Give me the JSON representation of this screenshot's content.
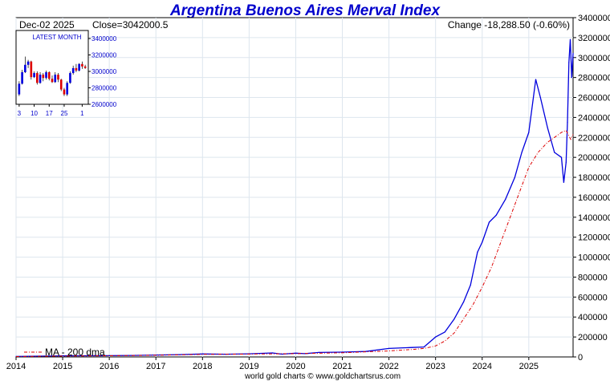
{
  "chart_data": {
    "type": "line",
    "title": "Argentina Buenos Aires Merval Index",
    "header": {
      "date_label": "Dec-02  2025",
      "close_label": "Close=3042000.5",
      "change_label": "Change -18,288.50 (-0.60%)"
    },
    "footer": "world gold charts © www.goldchartsrus.com",
    "x_ticks": [
      "2014",
      "2015",
      "2016",
      "2017",
      "2018",
      "2019",
      "2020",
      "2021",
      "2022",
      "2023",
      "2024",
      "2025"
    ],
    "xlim": [
      2014.0,
      2025.95
    ],
    "y_ticks": [
      0,
      200000,
      400000,
      600000,
      800000,
      1000000,
      1200000,
      1400000,
      1600000,
      1800000,
      2000000,
      2200000,
      2400000,
      2600000,
      2800000,
      3000000,
      3200000,
      3400000
    ],
    "ylim": [
      0,
      3400000
    ],
    "grid": true,
    "colors": {
      "index": "#0000dd",
      "ma": "#dd0000",
      "title": "#0000cc",
      "grid": "#dde6ee"
    },
    "series": [
      {
        "name": "Merval",
        "x": [
          2014.0,
          2014.5,
          2015.0,
          2015.5,
          2016.0,
          2016.5,
          2017.0,
          2017.5,
          2018.0,
          2018.5,
          2019.0,
          2019.5,
          2019.7,
          2020.0,
          2020.2,
          2020.5,
          2021.0,
          2021.5,
          2022.0,
          2022.5,
          2022.75,
          2023.0,
          2023.2,
          2023.4,
          2023.6,
          2023.75,
          2023.9,
          2024.0,
          2024.15,
          2024.3,
          2024.5,
          2024.7,
          2024.85,
          2025.0,
          2025.15,
          2025.25,
          2025.4,
          2025.55,
          2025.7,
          2025.75,
          2025.8,
          2025.83,
          2025.86,
          2025.89,
          2025.92,
          2025.95
        ],
        "values": [
          5000,
          8000,
          11000,
          12000,
          13000,
          15000,
          19000,
          23000,
          30000,
          27000,
          31000,
          40000,
          28000,
          38000,
          33000,
          45000,
          48000,
          55000,
          85000,
          95000,
          100000,
          200000,
          250000,
          380000,
          550000,
          720000,
          1050000,
          1150000,
          1350000,
          1420000,
          1580000,
          1800000,
          2050000,
          2250000,
          2780000,
          2600000,
          2300000,
          2050000,
          2000000,
          1750000,
          1950000,
          2350000,
          2950000,
          3180000,
          2800000,
          3042000
        ]
      },
      {
        "name": "MA - 200 dma",
        "x": [
          2014.0,
          2015.0,
          2016.0,
          2017.0,
          2018.0,
          2019.0,
          2020.0,
          2021.0,
          2022.0,
          2022.5,
          2022.75,
          2023.0,
          2023.2,
          2023.4,
          2023.6,
          2023.8,
          2024.0,
          2024.2,
          2024.4,
          2024.6,
          2024.8,
          2025.0,
          2025.2,
          2025.4,
          2025.55,
          2025.7,
          2025.8,
          2025.9,
          2025.95
        ],
        "values": [
          4000,
          9000,
          12000,
          17000,
          26000,
          29000,
          33000,
          42000,
          60000,
          75000,
          85000,
          110000,
          160000,
          240000,
          380000,
          520000,
          700000,
          900000,
          1150000,
          1400000,
          1650000,
          1900000,
          2050000,
          2150000,
          2200000,
          2250000,
          2270000,
          2180000,
          2230000
        ]
      }
    ],
    "legend": {
      "label": "MA - 200 dma",
      "position": "bottom-left"
    },
    "inset": {
      "title": "LATEST MONTH",
      "y_ticks": [
        "3400000",
        "3200000",
        "3000000",
        "2800000",
        "2600000"
      ],
      "y_values": [
        3400000,
        3200000,
        3000000,
        2800000,
        2600000
      ],
      "x_ticks": [
        "3",
        "10",
        "17",
        "25",
        "1"
      ],
      "candles": [
        {
          "o": 2720000,
          "c": 2850000,
          "h": 2880000,
          "l": 2700000
        },
        {
          "o": 2850000,
          "c": 2990000,
          "h": 3020000,
          "l": 2840000
        },
        {
          "o": 2990000,
          "c": 3080000,
          "h": 3180000,
          "l": 2980000
        },
        {
          "o": 3080000,
          "c": 3120000,
          "h": 3140000,
          "l": 3040000
        },
        {
          "o": 3120000,
          "c": 2930000,
          "h": 3130000,
          "l": 2900000
        },
        {
          "o": 2930000,
          "c": 2980000,
          "h": 3000000,
          "l": 2920000
        },
        {
          "o": 2980000,
          "c": 2860000,
          "h": 3000000,
          "l": 2840000
        },
        {
          "o": 2860000,
          "c": 2960000,
          "h": 2990000,
          "l": 2850000
        },
        {
          "o": 2960000,
          "c": 2920000,
          "h": 2980000,
          "l": 2880000
        },
        {
          "o": 2920000,
          "c": 2990000,
          "h": 3010000,
          "l": 2900000
        },
        {
          "o": 2990000,
          "c": 2910000,
          "h": 3000000,
          "l": 2890000
        },
        {
          "o": 2910000,
          "c": 2870000,
          "h": 2950000,
          "l": 2860000
        },
        {
          "o": 2870000,
          "c": 2960000,
          "h": 2990000,
          "l": 2860000
        },
        {
          "o": 2960000,
          "c": 2900000,
          "h": 2980000,
          "l": 2870000
        },
        {
          "o": 2900000,
          "c": 2780000,
          "h": 2910000,
          "l": 2760000
        },
        {
          "o": 2780000,
          "c": 2720000,
          "h": 2800000,
          "l": 2700000
        },
        {
          "o": 2720000,
          "c": 2860000,
          "h": 2880000,
          "l": 2700000
        },
        {
          "o": 2860000,
          "c": 2980000,
          "h": 3000000,
          "l": 2850000
        },
        {
          "o": 2980000,
          "c": 3040000,
          "h": 3070000,
          "l": 2960000
        },
        {
          "o": 3040000,
          "c": 3010000,
          "h": 3090000,
          "l": 2990000
        },
        {
          "o": 3010000,
          "c": 3090000,
          "h": 3100000,
          "l": 3000000
        },
        {
          "o": 3090000,
          "c": 3060000,
          "h": 3120000,
          "l": 3030000
        },
        {
          "o": 3060000,
          "c": 3042000,
          "h": 3080000,
          "l": 3030000
        }
      ]
    }
  }
}
